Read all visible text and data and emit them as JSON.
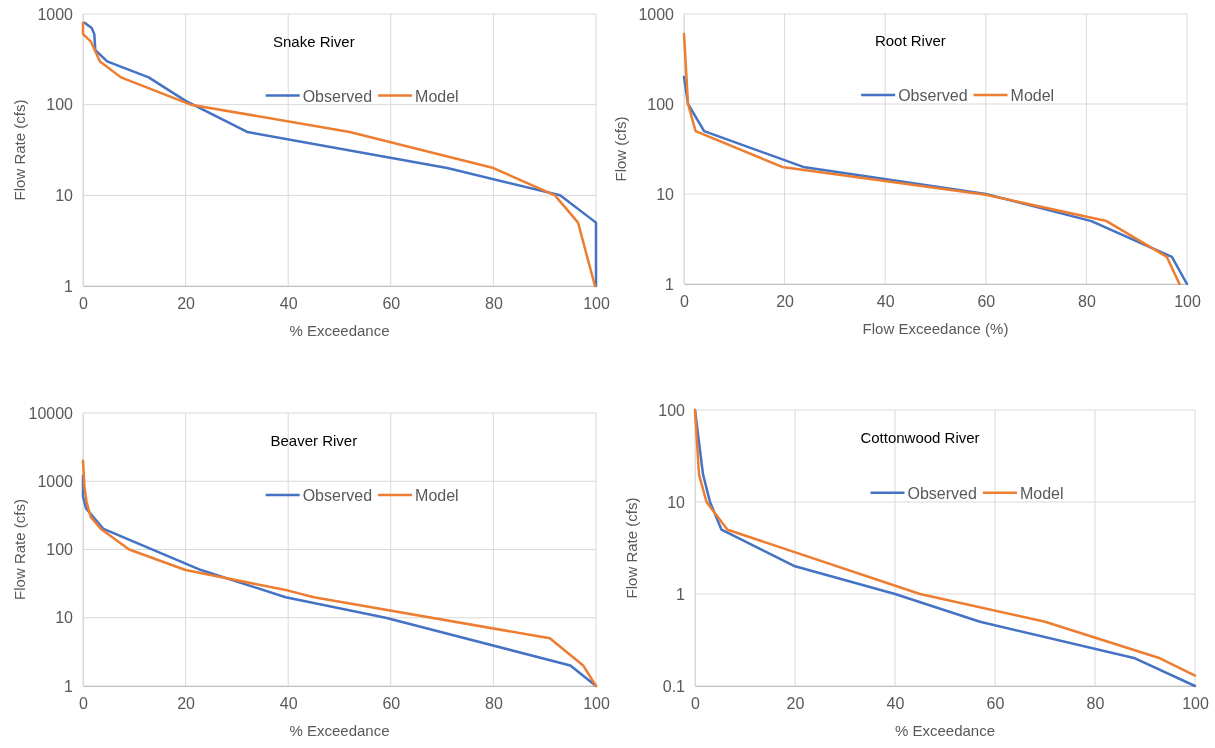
{
  "chart_data": [
    {
      "type": "line",
      "title": "Snake River",
      "xlabel": "% Exceedance",
      "ylabel": "Flow Rate (cfs)",
      "log": "y",
      "grid": true,
      "legend": "top",
      "xlim": [
        0,
        100
      ],
      "xticks": [
        0,
        20,
        40,
        60,
        80,
        100
      ],
      "ylim": [
        1,
        1000
      ],
      "yticks": [
        1,
        10,
        100,
        1000
      ],
      "series": [
        {
          "name": "Observed",
          "color": "#4472c4",
          "x": [
            0.3,
            1.7,
            2.2,
            2.4,
            4.7,
            12.8,
            20,
            32,
            71,
            93,
            100,
            100
          ],
          "values": [
            800,
            700,
            600,
            400,
            300,
            200,
            110,
            50,
            20,
            10,
            5,
            1
          ]
        },
        {
          "name": "Model",
          "color": "#ed7d31",
          "x": [
            0,
            0,
            1.5,
            3.3,
            7.4,
            21,
            52,
            80,
            92,
            96.5,
            99.8
          ],
          "values": [
            800,
            600,
            500,
            300,
            200,
            100,
            50,
            20,
            10,
            5,
            1
          ]
        }
      ]
    },
    {
      "type": "line",
      "title": "Root River",
      "xlabel": "Flow Exceedance (%)",
      "ylabel": "Flow (cfs)",
      "log": "y",
      "grid": true,
      "legend": "top",
      "xlim": [
        0,
        100
      ],
      "xticks": [
        0,
        20,
        40,
        60,
        80,
        100
      ],
      "ylim": [
        1,
        1000
      ],
      "yticks": [
        1,
        10,
        100,
        1000
      ],
      "series": [
        {
          "name": "Observed",
          "color": "#4472c4",
          "x": [
            0,
            0.8,
            4,
            23.7,
            60,
            81,
            97,
            100
          ],
          "values": [
            200,
            100,
            50,
            20,
            10,
            5,
            2,
            1
          ]
        },
        {
          "name": "Model",
          "color": "#ed7d31",
          "x": [
            0,
            0.8,
            2.3,
            19.5,
            60,
            84,
            96,
            98.5
          ],
          "values": [
            600,
            100,
            50,
            20,
            9.8,
            5,
            2,
            1
          ]
        }
      ]
    },
    {
      "type": "line",
      "title": "Beaver River",
      "xlabel": "% Exceedance",
      "ylabel": "Flow Rate (cfs)",
      "log": "y",
      "grid": true,
      "legend": "top",
      "xlim": [
        0,
        100
      ],
      "xticks": [
        0,
        20,
        40,
        60,
        80,
        100
      ],
      "ylim": [
        1,
        10000
      ],
      "yticks": [
        1,
        10,
        100,
        1000,
        10000
      ],
      "series": [
        {
          "name": "Observed",
          "color": "#4472c4",
          "x": [
            0,
            0,
            0.6,
            4,
            23,
            39.5,
            59,
            95,
            100
          ],
          "values": [
            1200,
            600,
            400,
            200,
            50,
            20,
            10,
            2,
            1
          ]
        },
        {
          "name": "Model",
          "color": "#ed7d31",
          "x": [
            0,
            0.3,
            0.7,
            1.5,
            3.5,
            9,
            20,
            40,
            45,
            91,
            97.5,
            100
          ],
          "values": [
            2000,
            800,
            500,
            300,
            200,
            100,
            50,
            25,
            20,
            5,
            2,
            1
          ]
        }
      ]
    },
    {
      "type": "line",
      "title": "Cottonwood River",
      "xlabel": "% Exceedance",
      "ylabel": "Flow Rate (cfs)",
      "log": "y",
      "grid": true,
      "legend": "top",
      "xlim": [
        0,
        100
      ],
      "xticks": [
        0,
        20,
        40,
        60,
        80,
        100
      ],
      "ylim": [
        0.1,
        100
      ],
      "yticks": [
        0.1,
        1,
        10,
        100
      ],
      "series": [
        {
          "name": "Observed",
          "color": "#4472c4",
          "x": [
            0,
            1.6,
            3,
            5.3,
            20,
            40,
            57,
            88,
            100
          ],
          "values": [
            100,
            20,
            10,
            5,
            2,
            1,
            0.5,
            0.2,
            0.1
          ]
        },
        {
          "name": "Model",
          "color": "#ed7d31",
          "x": [
            0,
            0.8,
            2.3,
            6.5,
            45,
            70,
            93,
            100
          ],
          "values": [
            100,
            20,
            10,
            5,
            1,
            0.5,
            0.2,
            0.13
          ]
        }
      ]
    }
  ]
}
